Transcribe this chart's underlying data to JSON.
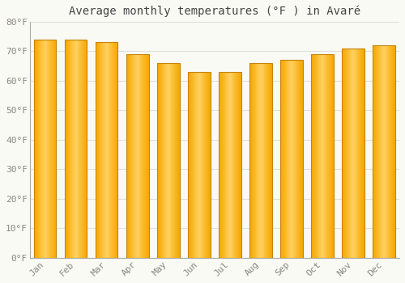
{
  "title": "Average monthly temperatures (°F ) in Avaré",
  "months": [
    "Jan",
    "Feb",
    "Mar",
    "Apr",
    "May",
    "Jun",
    "Jul",
    "Aug",
    "Sep",
    "Oct",
    "Nov",
    "Dec"
  ],
  "values": [
    74,
    74,
    73,
    69,
    66,
    63,
    63,
    66,
    67,
    69,
    71,
    72
  ],
  "bar_color_left": "#F5A800",
  "bar_color_center": "#FFD966",
  "bar_color_right": "#E69500",
  "bar_edge_color": "#C8820A",
  "background_color": "#FAFAF5",
  "grid_color": "#E0E0D8",
  "ylim": [
    0,
    80
  ],
  "yticks": [
    0,
    10,
    20,
    30,
    40,
    50,
    60,
    70,
    80
  ],
  "title_fontsize": 10,
  "tick_fontsize": 8,
  "font_family": "monospace",
  "tick_color": "#888880",
  "spine_color": "#AAAAAA"
}
